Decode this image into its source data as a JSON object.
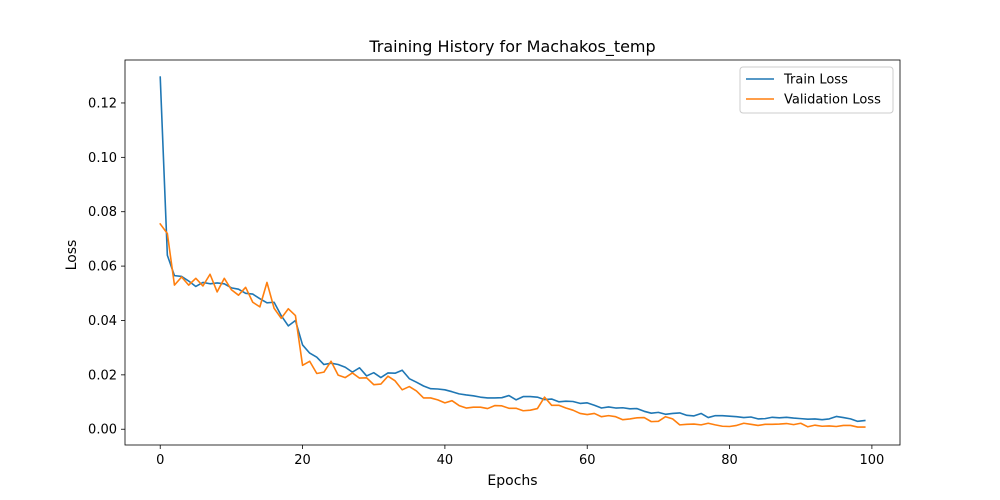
{
  "chart_data": {
    "type": "line",
    "title": "Training History for Machakos_temp",
    "xlabel": "Epochs",
    "ylabel": "Loss",
    "xlim": [
      -4.95,
      103.95
    ],
    "ylim": [
      -0.0058,
      0.1358
    ],
    "xticks": [
      0,
      20,
      40,
      60,
      80,
      100
    ],
    "yticks": [
      0.0,
      0.02,
      0.04,
      0.06,
      0.08,
      0.1,
      0.12
    ],
    "ytick_labels": [
      "0.00",
      "0.02",
      "0.04",
      "0.06",
      "0.08",
      "0.10",
      "0.12"
    ],
    "grid": false,
    "legend_position": "top-right",
    "series": [
      {
        "name": "Train Loss",
        "color": "#1f77b4",
        "values": [
          0.1295,
          0.064,
          0.0565,
          0.0562,
          0.0545,
          0.0525,
          0.054,
          0.0535,
          0.0538,
          0.0535,
          0.052,
          0.0515,
          0.05,
          0.0497,
          0.048,
          0.0465,
          0.0467,
          0.0418,
          0.038,
          0.04,
          0.031,
          0.028,
          0.0265,
          0.0238,
          0.0243,
          0.0238,
          0.0228,
          0.021,
          0.0226,
          0.0196,
          0.0208,
          0.019,
          0.0207,
          0.0206,
          0.0217,
          0.0186,
          0.0173,
          0.0159,
          0.0149,
          0.0148,
          0.0145,
          0.0138,
          0.013,
          0.0126,
          0.0123,
          0.0118,
          0.0115,
          0.0115,
          0.0116,
          0.0124,
          0.0108,
          0.012,
          0.012,
          0.0118,
          0.0109,
          0.0111,
          0.0101,
          0.0103,
          0.0102,
          0.0095,
          0.0097,
          0.0088,
          0.0078,
          0.0082,
          0.0078,
          0.0079,
          0.0075,
          0.0076,
          0.0066,
          0.0059,
          0.0062,
          0.0055,
          0.0058,
          0.006,
          0.0051,
          0.0049,
          0.0058,
          0.0043,
          0.005,
          0.005,
          0.0048,
          0.0046,
          0.0043,
          0.0045,
          0.0038,
          0.0039,
          0.0044,
          0.0042,
          0.0044,
          0.0041,
          0.0039,
          0.0037,
          0.0038,
          0.0035,
          0.0038,
          0.0047,
          0.0043,
          0.0038,
          0.0029,
          0.0032
        ]
      },
      {
        "name": "Validation Loss",
        "color": "#ff7f0e",
        "values": [
          0.0755,
          0.072,
          0.053,
          0.056,
          0.053,
          0.0555,
          0.0527,
          0.057,
          0.0505,
          0.0555,
          0.0513,
          0.0493,
          0.0522,
          0.0467,
          0.045,
          0.054,
          0.0445,
          0.0408,
          0.0443,
          0.0418,
          0.0235,
          0.025,
          0.0205,
          0.021,
          0.025,
          0.0199,
          0.019,
          0.0207,
          0.0188,
          0.0189,
          0.0164,
          0.0166,
          0.0195,
          0.0178,
          0.0145,
          0.0157,
          0.0141,
          0.0115,
          0.0115,
          0.0108,
          0.0097,
          0.0105,
          0.0087,
          0.0078,
          0.0081,
          0.0081,
          0.0076,
          0.0087,
          0.0086,
          0.0077,
          0.0077,
          0.0068,
          0.007,
          0.0076,
          0.0118,
          0.0088,
          0.0088,
          0.0078,
          0.007,
          0.0058,
          0.0054,
          0.0058,
          0.0046,
          0.005,
          0.0046,
          0.0035,
          0.0038,
          0.0042,
          0.0043,
          0.0028,
          0.0029,
          0.0046,
          0.0038,
          0.0016,
          0.0018,
          0.0019,
          0.0016,
          0.0022,
          0.0016,
          0.0011,
          0.001,
          0.0014,
          0.0022,
          0.0018,
          0.0014,
          0.0018,
          0.0018,
          0.0019,
          0.0021,
          0.0017,
          0.0022,
          0.0009,
          0.0015,
          0.0011,
          0.0012,
          0.001,
          0.0014,
          0.0014,
          0.0008,
          0.0008
        ]
      }
    ]
  }
}
